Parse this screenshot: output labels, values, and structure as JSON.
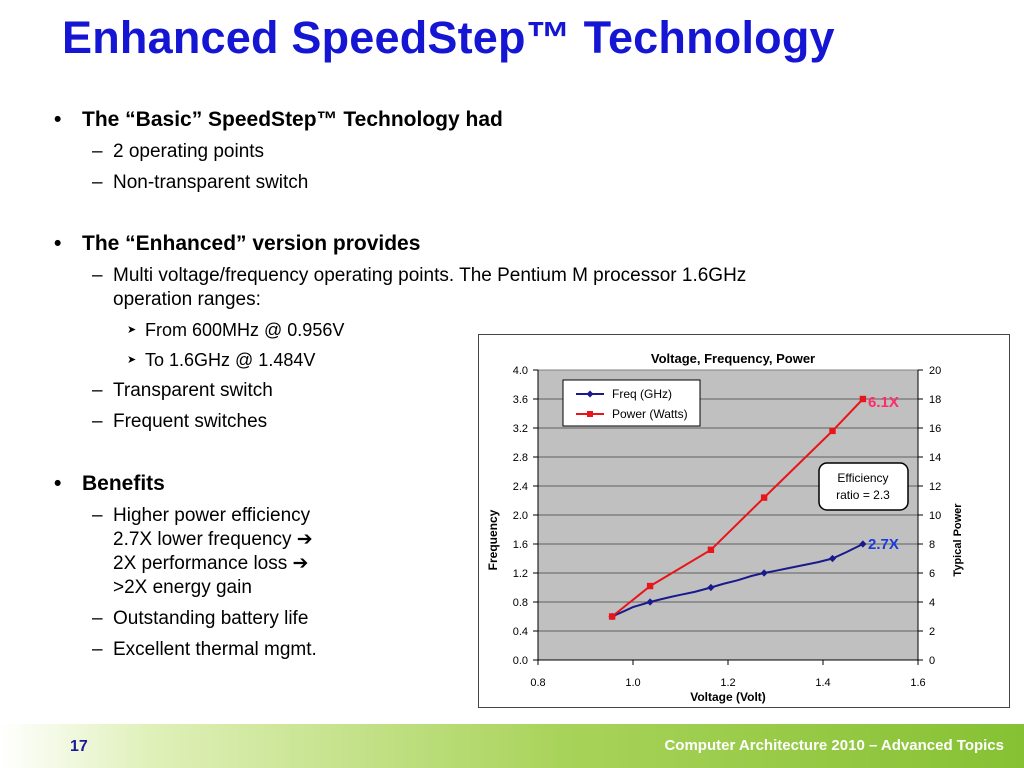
{
  "title": "Enhanced SpeedStep™ Technology",
  "bullets": {
    "basic": {
      "heading": "The “Basic” SpeedStep™ Technology had",
      "items": [
        "2 operating points",
        "Non-transparent switch"
      ]
    },
    "enhanced": {
      "heading": "The “Enhanced” version provides",
      "multi_line1": "Multi voltage/frequency operating points. The Pentium M processor 1.6GHz",
      "multi_line2": "operation ranges:",
      "range_from": "From 600MHz @ 0.956V",
      "range_to": "To 1.6GHz @ 1.484V",
      "transparent": "Transparent switch",
      "frequent": "Frequent switches"
    },
    "benefits": {
      "heading": "Benefits",
      "eff_line1": "Higher power efficiency",
      "eff_line2": "2.7X lower frequency",
      "eff_line3": "2X performance loss",
      "eff_line4": ">2X energy gain",
      "battery": "Outstanding battery life",
      "thermal": "Excellent thermal mgmt."
    }
  },
  "chart_data": {
    "type": "line",
    "title": "Voltage, Frequency, Power",
    "xlabel": "Voltage (Volt)",
    "ylabel": "Frequency",
    "y2label": "Typical Power",
    "xlim": [
      0.8,
      1.6
    ],
    "ylim": [
      0.0,
      4.0
    ],
    "y2lim": [
      0,
      20
    ],
    "xticks": [
      "0.8",
      "1.0",
      "1.2",
      "1.4",
      "1.6"
    ],
    "yticks": [
      "0.0",
      "0.4",
      "0.8",
      "1.2",
      "1.6",
      "2.0",
      "2.4",
      "2.8",
      "3.2",
      "3.6",
      "4.0"
    ],
    "y2ticks": [
      "0",
      "2",
      "4",
      "6",
      "8",
      "10",
      "12",
      "14",
      "16",
      "18",
      "20"
    ],
    "grid": true,
    "legend_position": "top-left",
    "series": [
      {
        "name": "Freq (GHz)",
        "axis": "left",
        "color": "#1a1a8c",
        "marker": "diamond",
        "x": [
          0.956,
          1.036,
          1.164,
          1.276,
          1.42,
          1.484
        ],
        "y": [
          0.6,
          0.8,
          1.0,
          1.2,
          1.4,
          1.6
        ],
        "path_x": [
          0.956,
          0.98,
          1.0,
          1.036,
          1.06,
          1.08,
          1.1,
          1.13,
          1.164,
          1.19,
          1.22,
          1.25,
          1.276,
          1.3,
          1.33,
          1.36,
          1.39,
          1.42,
          1.45,
          1.484
        ],
        "path_y": [
          0.6,
          0.67,
          0.73,
          0.8,
          0.84,
          0.87,
          0.9,
          0.94,
          1.0,
          1.05,
          1.1,
          1.16,
          1.2,
          1.23,
          1.27,
          1.31,
          1.35,
          1.4,
          1.49,
          1.6
        ]
      },
      {
        "name": "Power (Watts)",
        "axis": "right",
        "color": "#e8161a",
        "marker": "square",
        "x": [
          0.956,
          1.036,
          1.164,
          1.276,
          1.42,
          1.484
        ],
        "y": [
          3.0,
          5.1,
          7.6,
          11.2,
          15.8,
          18.0
        ]
      }
    ],
    "annotations": {
      "power_ratio": "6.1X",
      "freq_ratio": "2.7X",
      "efficiency_line1": "Efficiency",
      "efficiency_line2": "ratio = 2.3"
    },
    "colors": {
      "plot_bg": "#c0c0c0",
      "annotation_power": "#ff2a6a",
      "annotation_freq": "#1a3adc"
    }
  },
  "footer": {
    "slide_number": "17",
    "text": "Computer Architecture  2010 – Advanced Topics"
  }
}
